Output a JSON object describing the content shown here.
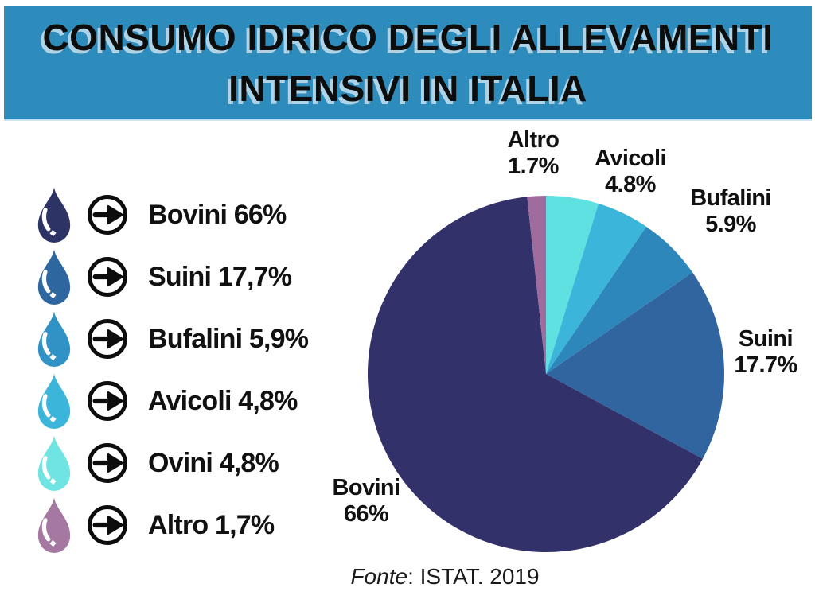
{
  "title": {
    "line1": "CONSUMO IDRICO DEGLI ALLEVAMENTI",
    "line2": "INTENSIVI IN ITALIA"
  },
  "colors": {
    "banner_background": "#2E8CBD",
    "title_text": "#0D0D0D",
    "title_shadow": "#AED3E6",
    "icon_black": "#0D0D0D",
    "background": "#FFFFFF"
  },
  "icons": {
    "drop": "water-drop-icon",
    "arrow": "arrow-right-circle-icon"
  },
  "legend": {
    "items": [
      {
        "name": "bovini",
        "label": "Bovini 66%",
        "drop_color": "#2E3366"
      },
      {
        "name": "suini",
        "label": "Suini 17,7%",
        "drop_color": "#2E67A0"
      },
      {
        "name": "bufalini",
        "label": "Bufalini 5,9%",
        "drop_color": "#3192C5"
      },
      {
        "name": "avicoli",
        "label": "Avicoli 4,8%",
        "drop_color": "#3CB5DA"
      },
      {
        "name": "ovini",
        "label": "Ovini 4,8%",
        "drop_color": "#6FE4E2"
      },
      {
        "name": "altro",
        "label": "Altro 1,7%",
        "drop_color": "#A478A1"
      }
    ]
  },
  "chart_data": {
    "type": "pie",
    "title": "CONSUMO IDRICO DEGLI ALLEVAMENTI INTENSIVI IN ITALIA",
    "start_angle_deg_from_12_oclock": 0,
    "direction": "clockwise",
    "legend_position": "left",
    "slices": [
      {
        "label": "Ovini",
        "value": 4.8,
        "color": "#5FE1E1"
      },
      {
        "label": "Avicoli",
        "value": 4.8,
        "color": "#3CB5DA"
      },
      {
        "label": "Bufalini",
        "value": 5.9,
        "color": "#2E87BB"
      },
      {
        "label": "Suini",
        "value": 17.7,
        "color": "#31659F"
      },
      {
        "label": "Bovini",
        "value": 66,
        "color": "#333169"
      },
      {
        "label": "Altro",
        "value": 1.7,
        "color": "#A06B9D"
      }
    ],
    "annotations": [
      {
        "slice": "altro",
        "lines": [
          "Altro",
          "1.7%"
        ]
      },
      {
        "slice": "avicoli",
        "lines": [
          "Avicoli",
          "4.8%"
        ]
      },
      {
        "slice": "bufalini",
        "lines": [
          "Bufalini",
          "5.9%"
        ]
      },
      {
        "slice": "suini",
        "lines": [
          "Suini",
          "17.7%"
        ]
      },
      {
        "slice": "bovini",
        "lines": [
          "Bovini",
          "66%"
        ]
      }
    ],
    "source": "Fonte: ISTAT. 2019"
  },
  "source": {
    "label_italic": "Fonte",
    "label_rest": ": ISTAT. 2019"
  }
}
